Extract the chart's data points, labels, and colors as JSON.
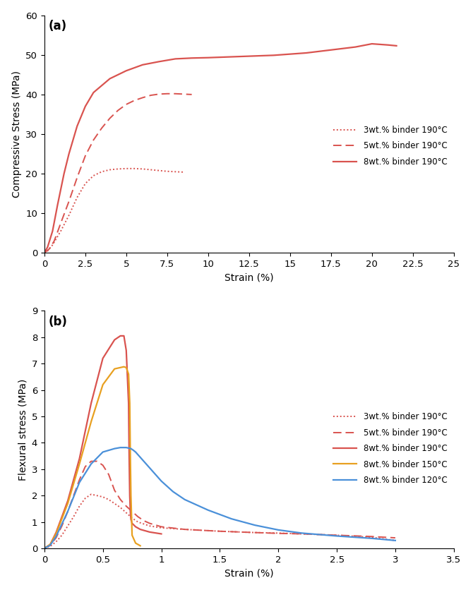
{
  "panel_a": {
    "title": "(a)",
    "xlabel": "Strain (%)",
    "ylabel": "Compressive Stress (MPa)",
    "xlim": [
      0,
      25
    ],
    "ylim": [
      0,
      60
    ],
    "xticks": [
      0,
      2.5,
      5,
      7.5,
      10,
      12.5,
      15,
      17.5,
      20,
      22.5,
      25
    ],
    "yticks": [
      0,
      10,
      20,
      30,
      40,
      50,
      60
    ],
    "series": [
      {
        "label": "3wt.% binder 190°C",
        "color": "#d9534f",
        "linestyle": "densely_dotted",
        "linewidth": 1.4,
        "x": [
          0,
          0.2,
          0.5,
          1.0,
          1.5,
          2.0,
          2.5,
          3.0,
          3.5,
          4.0,
          4.5,
          5.0,
          5.5,
          6.0,
          6.5,
          7.0,
          7.5,
          8.0,
          8.5
        ],
        "y": [
          0,
          0.5,
          2.0,
          5.5,
          9.5,
          14.0,
          17.5,
          19.5,
          20.5,
          21.0,
          21.2,
          21.3,
          21.3,
          21.2,
          21.0,
          20.8,
          20.6,
          20.5,
          20.4
        ]
      },
      {
        "label": "5wt.% binder 190°C",
        "color": "#d9534f",
        "linestyle": "dashed",
        "linewidth": 1.4,
        "x": [
          0,
          0.3,
          0.6,
          1.0,
          1.5,
          2.0,
          2.5,
          3.0,
          3.5,
          4.0,
          4.5,
          5.0,
          5.5,
          6.0,
          6.5,
          7.0,
          7.5,
          8.0,
          8.5,
          9.0
        ],
        "y": [
          0,
          1.0,
          3.0,
          7.5,
          13.0,
          19.0,
          24.5,
          28.5,
          31.5,
          34.0,
          36.0,
          37.5,
          38.5,
          39.2,
          39.8,
          40.1,
          40.2,
          40.2,
          40.1,
          40.0
        ]
      },
      {
        "label": "8wt.% binder 190°C",
        "color": "#d9534f",
        "linestyle": "solid",
        "linewidth": 1.6,
        "x": [
          0,
          0.2,
          0.5,
          0.8,
          1.2,
          1.5,
          2.0,
          2.5,
          3.0,
          4.0,
          5.0,
          6.0,
          7.0,
          8.0,
          9.0,
          10.0,
          12.0,
          14.0,
          16.0,
          18.0,
          19.0,
          20.0,
          21.0,
          21.5
        ],
        "y": [
          0,
          1.5,
          5.5,
          12.0,
          20.0,
          25.0,
          32.0,
          37.0,
          40.5,
          44.0,
          46.0,
          47.5,
          48.3,
          49.0,
          49.2,
          49.3,
          49.6,
          49.9,
          50.5,
          51.5,
          52.0,
          52.8,
          52.5,
          52.3
        ]
      }
    ]
  },
  "panel_b": {
    "title": "(b)",
    "xlabel": "Strain (%)",
    "ylabel": "Flexural stress (MPa)",
    "xlim": [
      0,
      3.5
    ],
    "ylim": [
      0,
      9
    ],
    "xticks": [
      0,
      0.5,
      1.0,
      1.5,
      2.0,
      2.5,
      3.0,
      3.5
    ],
    "yticks": [
      0,
      1,
      2,
      3,
      4,
      5,
      6,
      7,
      8,
      9
    ],
    "series": [
      {
        "label": "3wt.% binder 190°C",
        "color": "#d9534f",
        "linestyle": "densely_dotted",
        "linewidth": 1.4,
        "x": [
          0,
          0.05,
          0.1,
          0.15,
          0.2,
          0.25,
          0.3,
          0.35,
          0.4,
          0.45,
          0.5,
          0.55,
          0.6,
          0.65,
          0.7,
          0.75,
          0.8,
          0.9,
          1.0,
          1.2,
          1.5,
          1.8,
          2.0,
          2.2,
          2.5,
          2.8,
          3.0
        ],
        "y": [
          0,
          0.08,
          0.25,
          0.5,
          0.85,
          1.2,
          1.6,
          1.9,
          2.05,
          2.0,
          1.95,
          1.85,
          1.7,
          1.55,
          1.35,
          1.15,
          1.0,
          0.85,
          0.78,
          0.72,
          0.65,
          0.6,
          0.58,
          0.55,
          0.5,
          0.42,
          0.3
        ]
      },
      {
        "label": "5wt.% binder 190°C",
        "color": "#d9534f",
        "linestyle": "dashed",
        "linewidth": 1.4,
        "x": [
          0,
          0.05,
          0.1,
          0.15,
          0.2,
          0.25,
          0.3,
          0.35,
          0.4,
          0.45,
          0.5,
          0.55,
          0.6,
          0.65,
          0.7,
          0.75,
          0.8,
          0.85,
          0.9,
          1.0,
          1.2,
          1.5,
          1.8,
          2.0,
          2.2,
          2.5,
          2.8,
          3.0
        ],
        "y": [
          0,
          0.12,
          0.4,
          0.85,
          1.4,
          2.0,
          2.6,
          3.1,
          3.3,
          3.3,
          3.15,
          2.8,
          2.2,
          1.85,
          1.6,
          1.4,
          1.2,
          1.05,
          0.95,
          0.82,
          0.72,
          0.65,
          0.6,
          0.57,
          0.55,
          0.5,
          0.45,
          0.4
        ]
      },
      {
        "label": "8wt.% binder 190°C",
        "color": "#d9534f",
        "linestyle": "solid",
        "linewidth": 1.6,
        "x": [
          0,
          0.05,
          0.1,
          0.2,
          0.3,
          0.4,
          0.5,
          0.6,
          0.65,
          0.68,
          0.7,
          0.72,
          0.725,
          0.73,
          0.735,
          0.74,
          0.75,
          0.78,
          0.82,
          0.9,
          1.0
        ],
        "y": [
          0,
          0.15,
          0.6,
          1.8,
          3.4,
          5.5,
          7.2,
          7.9,
          8.05,
          8.05,
          7.5,
          5.5,
          3.5,
          2.0,
          1.4,
          1.1,
          0.95,
          0.82,
          0.72,
          0.62,
          0.55
        ]
      },
      {
        "label": "8wt.% binder 150°C",
        "color": "#e8a020",
        "linestyle": "solid",
        "linewidth": 1.6,
        "x": [
          0,
          0.05,
          0.1,
          0.2,
          0.3,
          0.4,
          0.5,
          0.6,
          0.65,
          0.68,
          0.7,
          0.72,
          0.73,
          0.735,
          0.74,
          0.75,
          0.78,
          0.82
        ],
        "y": [
          0,
          0.15,
          0.55,
          1.7,
          3.2,
          4.8,
          6.2,
          6.8,
          6.85,
          6.88,
          6.85,
          6.6,
          5.5,
          3.5,
          2.0,
          0.5,
          0.2,
          0.1
        ]
      },
      {
        "label": "8wt.% binder 120°C",
        "color": "#4a90d9",
        "linestyle": "solid",
        "linewidth": 1.6,
        "x": [
          0,
          0.05,
          0.1,
          0.2,
          0.3,
          0.4,
          0.5,
          0.6,
          0.65,
          0.7,
          0.72,
          0.74,
          0.76,
          0.78,
          0.8,
          0.85,
          0.9,
          1.0,
          1.1,
          1.2,
          1.4,
          1.6,
          1.8,
          2.0,
          2.2,
          2.5,
          2.8,
          3.0
        ],
        "y": [
          0,
          0.12,
          0.45,
          1.4,
          2.5,
          3.2,
          3.65,
          3.78,
          3.82,
          3.82,
          3.8,
          3.78,
          3.72,
          3.65,
          3.55,
          3.3,
          3.05,
          2.55,
          2.15,
          1.85,
          1.45,
          1.12,
          0.88,
          0.7,
          0.58,
          0.47,
          0.38,
          0.3
        ]
      }
    ]
  },
  "fig_width": 6.7,
  "fig_height": 8.36,
  "dpi": 100
}
